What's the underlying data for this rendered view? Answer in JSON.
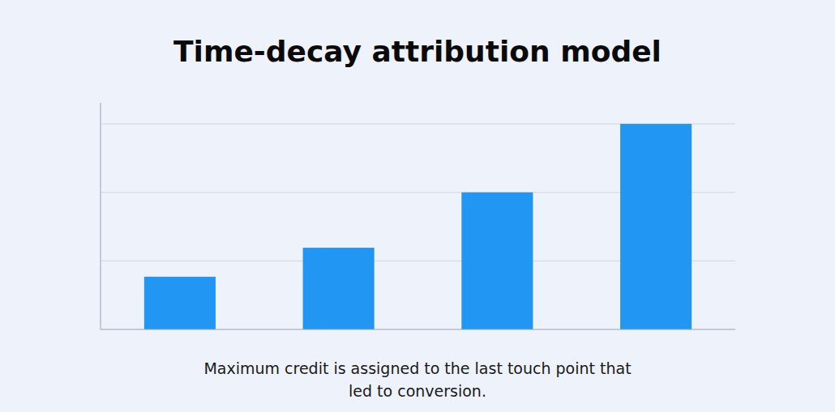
{
  "chart_data": {
    "type": "bar",
    "title": "Time-decay attribution model",
    "subtitle": "Maximum credit is assigned to the last touch point that\nled to conversion.",
    "categories": [
      null,
      null,
      null,
      null
    ],
    "values": [
      1.0,
      1.55,
      2.6,
      3.9
    ],
    "color": "#2196F3",
    "ylim": [
      0,
      4.3
    ],
    "yticks": [
      1.3,
      2.6,
      3.9
    ],
    "grid": true,
    "tick_labels": false
  }
}
